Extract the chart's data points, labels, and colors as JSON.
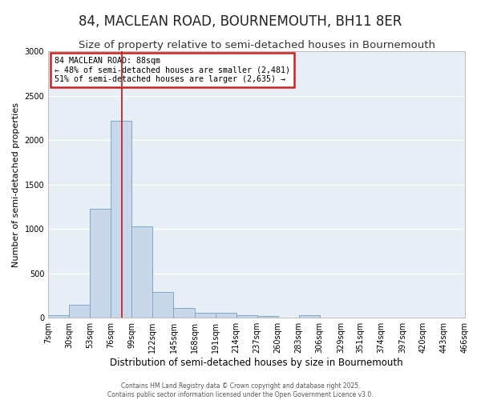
{
  "title": "84, MACLEAN ROAD, BOURNEMOUTH, BH11 8ER",
  "subtitle": "Size of property relative to semi-detached houses in Bournemouth",
  "xlabel": "Distribution of semi-detached houses by size in Bournemouth",
  "ylabel": "Number of semi-detached properties",
  "bin_edges": [
    7,
    30,
    53,
    76,
    99,
    122,
    145,
    168,
    191,
    214,
    237,
    260,
    283,
    306,
    329,
    351,
    374,
    397,
    420,
    443,
    466
  ],
  "bar_heights": [
    30,
    150,
    1230,
    2220,
    1030,
    290,
    110,
    55,
    55,
    30,
    20,
    0,
    30,
    0,
    0,
    0,
    0,
    0,
    0,
    0
  ],
  "bar_color": "#c8d8ea",
  "bar_edge_color": "#7aaac8",
  "vline_x": 88,
  "vline_color": "#cc2222",
  "annotation_text": "84 MACLEAN ROAD: 88sqm\n← 48% of semi-detached houses are smaller (2,481)\n51% of semi-detached houses are larger (2,635) →",
  "annotation_box_color": "#ffffff",
  "annotation_box_edge_color": "#cc2222",
  "ylim": [
    0,
    3000
  ],
  "yticks": [
    0,
    500,
    1000,
    1500,
    2000,
    2500,
    3000
  ],
  "bg_color": "#e8eef5",
  "fig_bg_color": "#ffffff",
  "grid_color": "#ffffff",
  "footer_text": "Contains HM Land Registry data © Crown copyright and database right 2025.\nContains public sector information licensed under the Open Government Licence v3.0.",
  "title_fontsize": 12,
  "subtitle_fontsize": 9.5,
  "tick_label_fontsize": 7,
  "ylabel_fontsize": 8,
  "xlabel_fontsize": 8.5,
  "footer_fontsize": 5.5
}
